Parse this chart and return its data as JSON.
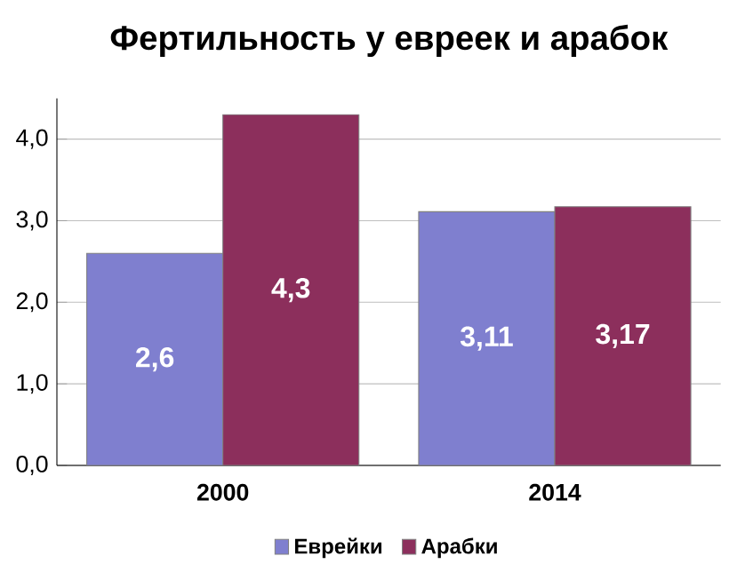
{
  "chart_data": {
    "type": "bar",
    "title": "Фертильность у евреек и арабок",
    "categories": [
      "2000",
      "2014"
    ],
    "series": [
      {
        "name": "Еврейки",
        "color": "#7f7fcf",
        "values": [
          2.6,
          3.11
        ],
        "value_labels": [
          "2,6",
          "3,11"
        ]
      },
      {
        "name": "Арабки",
        "color": "#8c2f5c",
        "values": [
          4.3,
          3.17
        ],
        "value_labels": [
          "4,3",
          "3,17"
        ]
      }
    ],
    "ylim": [
      0,
      4.5
    ],
    "yticks": [
      {
        "value": 0,
        "label": "0,0"
      },
      {
        "value": 1,
        "label": "1,0"
      },
      {
        "value": 2,
        "label": "2,0"
      },
      {
        "value": 3,
        "label": "3,0"
      },
      {
        "value": 4,
        "label": "4,0"
      }
    ],
    "grid": "y",
    "legend": "bottom"
  }
}
